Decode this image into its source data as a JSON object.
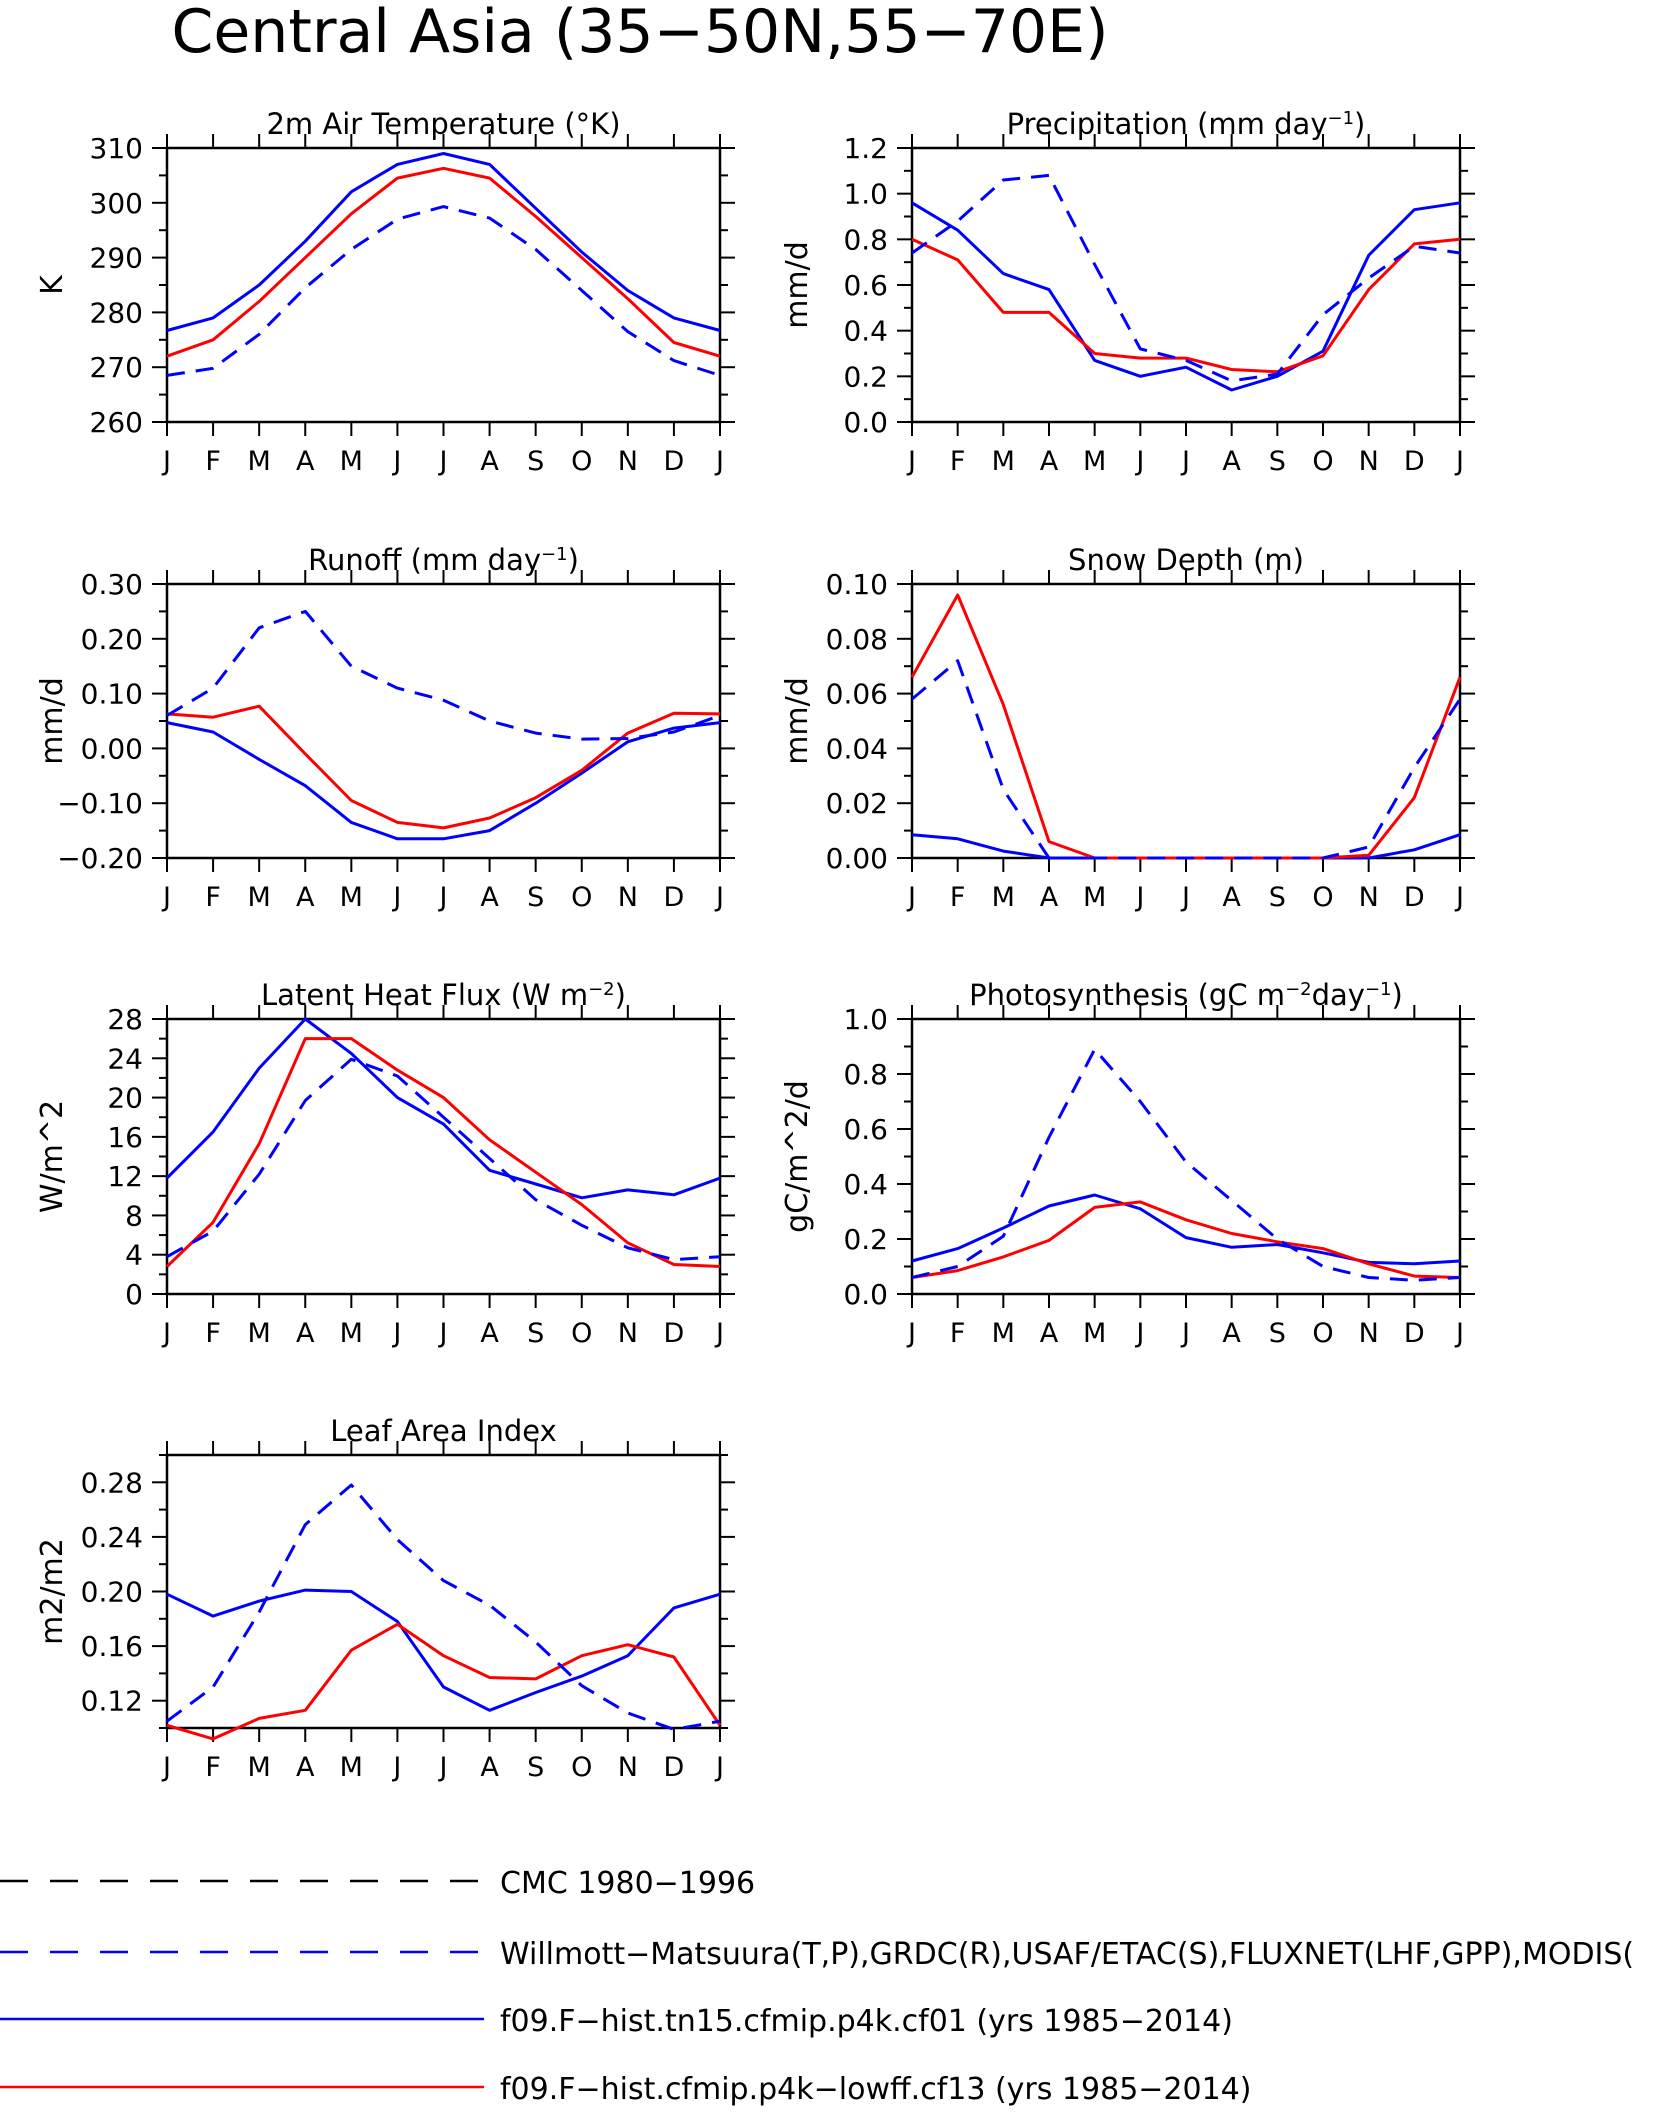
{
  "page_title": "Central Asia (35−50N,55−70E)",
  "colors": {
    "model_a": "#0000ff",
    "model_b": "#ff0000",
    "obs_cmc": "#000000",
    "obs_main": "#0000ff",
    "axis": "#000000"
  },
  "months": [
    "J",
    "F",
    "M",
    "A",
    "M",
    "J",
    "J",
    "A",
    "S",
    "O",
    "N",
    "D",
    "J"
  ],
  "legend": [
    {
      "label": "CMC 1980−1996",
      "color": "#000000",
      "style": "dashed"
    },
    {
      "label": "Willmott−Matsuura(T,P),GRDC(R),USAF/ETAC(S),FLUXNET(LHF,GPP),MODIS(",
      "color": "#0000ff",
      "style": "dashed"
    },
    {
      "label": "f09.F−hist.tn15.cfmip.p4k.cf01 (yrs 1985−2014)",
      "color": "#0000ff",
      "style": "solid"
    },
    {
      "label": "f09.F−hist.cfmip.p4k−lowff.cf13 (yrs 1985−2014)",
      "color": "#ff0000",
      "style": "solid"
    }
  ],
  "chart_data": [
    {
      "type": "line",
      "title_parts": [
        {
          "t": "2m Air Temperature (°K)"
        }
      ],
      "ylabel": "K",
      "ylim": [
        260,
        310
      ],
      "yticks": [
        260,
        270,
        280,
        290,
        300,
        310
      ],
      "ytick_labels": [
        "260",
        "270",
        "280",
        "290",
        "300",
        "310"
      ],
      "yminor": 5,
      "series": [
        {
          "color": "#0000ff",
          "style": "solid",
          "values": [
            276.7,
            279,
            285,
            293,
            302,
            307,
            309,
            307,
            299,
            291,
            284,
            279,
            276.7
          ]
        },
        {
          "color": "#ff0000",
          "style": "solid",
          "values": [
            272,
            275,
            282,
            290,
            298,
            304.5,
            306.3,
            304.5,
            297.5,
            290,
            282.5,
            274.5,
            272
          ]
        },
        {
          "color": "#0000ff",
          "style": "dashed",
          "values": [
            268.5,
            269.8,
            276,
            284.5,
            291.5,
            297,
            299.3,
            297.2,
            291.5,
            284,
            276.5,
            271.2,
            268.5
          ]
        }
      ]
    },
    {
      "type": "line",
      "title_parts": [
        {
          "t": "Precipitation (mm day"
        },
        {
          "t": "−1",
          "sup": true
        },
        {
          "t": ")"
        }
      ],
      "ylabel": "mm/d",
      "ylim": [
        0,
        1.2
      ],
      "yticks": [
        0,
        0.2,
        0.4,
        0.6,
        0.8,
        1.0,
        1.2
      ],
      "ytick_labels": [
        "0.0",
        "0.2",
        "0.4",
        "0.6",
        "0.8",
        "1.0",
        "1.2"
      ],
      "yminor": 0.1,
      "series": [
        {
          "color": "#0000ff",
          "style": "solid",
          "values": [
            0.96,
            0.84,
            0.65,
            0.58,
            0.27,
            0.2,
            0.24,
            0.14,
            0.2,
            0.31,
            0.73,
            0.93,
            0.96
          ]
        },
        {
          "color": "#ff0000",
          "style": "solid",
          "values": [
            0.8,
            0.71,
            0.48,
            0.48,
            0.3,
            0.28,
            0.28,
            0.23,
            0.22,
            0.29,
            0.58,
            0.78,
            0.8
          ]
        },
        {
          "color": "#0000ff",
          "style": "dashed",
          "values": [
            0.74,
            0.88,
            1.06,
            1.08,
            0.69,
            0.32,
            0.27,
            0.18,
            0.21,
            0.47,
            0.63,
            0.77,
            0.74
          ]
        }
      ]
    },
    {
      "type": "line",
      "title_parts": [
        {
          "t": "Runoff (mm day"
        },
        {
          "t": "−1",
          "sup": true
        },
        {
          "t": ")"
        }
      ],
      "ylabel": "mm/d",
      "ylim": [
        -0.2,
        0.3
      ],
      "yticks": [
        -0.2,
        -0.1,
        0,
        0.1,
        0.2,
        0.3
      ],
      "ytick_labels": [
        "−0.20",
        "−0.10",
        "0.00",
        "0.10",
        "0.20",
        "0.30"
      ],
      "yminor": 0.05,
      "series": [
        {
          "color": "#0000ff",
          "style": "solid",
          "values": [
            0.047,
            0.03,
            -0.02,
            -0.068,
            -0.135,
            -0.165,
            -0.165,
            -0.15,
            -0.1,
            -0.045,
            0.012,
            0.037,
            0.047
          ]
        },
        {
          "color": "#ff0000",
          "style": "solid",
          "values": [
            0.063,
            0.057,
            0.077,
            -0.01,
            -0.095,
            -0.135,
            -0.145,
            -0.127,
            -0.09,
            -0.04,
            0.028,
            0.064,
            0.063
          ]
        },
        {
          "color": "#0000ff",
          "style": "dashed",
          "values": [
            0.06,
            0.11,
            0.22,
            0.25,
            0.15,
            0.11,
            0.088,
            0.05,
            0.028,
            0.017,
            0.018,
            0.03,
            0.06
          ]
        }
      ]
    },
    {
      "type": "line",
      "title_parts": [
        {
          "t": "Snow Depth (m)"
        }
      ],
      "ylabel": "mm/d",
      "ylim": [
        0,
        0.1
      ],
      "yticks": [
        0,
        0.02,
        0.04,
        0.06,
        0.08,
        0.1
      ],
      "ytick_labels": [
        "0.00",
        "0.02",
        "0.04",
        "0.06",
        "0.08",
        "0.10"
      ],
      "yminor": 0.01,
      "series": [
        {
          "color": "#0000ff",
          "style": "solid",
          "values": [
            0.0085,
            0.007,
            0.0025,
            0,
            0,
            0,
            0,
            0,
            0,
            0,
            0,
            0.003,
            0.0085
          ]
        },
        {
          "color": "#ff0000",
          "style": "solid",
          "values": [
            0.066,
            0.096,
            0.056,
            0.006,
            0,
            0,
            0,
            0,
            0,
            0,
            0.001,
            0.022,
            0.066
          ]
        },
        {
          "color": "#0000ff",
          "style": "dashed",
          "values": [
            0.058,
            0.072,
            0.025,
            0,
            0,
            0,
            0,
            0,
            0,
            0,
            0.004,
            0.033,
            0.058
          ]
        }
      ]
    },
    {
      "type": "line",
      "title_parts": [
        {
          "t": "Latent Heat Flux (W m"
        },
        {
          "t": "−2",
          "sup": true
        },
        {
          "t": ")"
        }
      ],
      "ylabel": "W/m^2",
      "ylim": [
        0,
        28
      ],
      "yticks": [
        0,
        4,
        8,
        12,
        16,
        20,
        24,
        28
      ],
      "ytick_labels": [
        "0",
        "4",
        "8",
        "12",
        "16",
        "20",
        "24",
        "28"
      ],
      "yminor": 2,
      "series": [
        {
          "color": "#0000ff",
          "style": "solid",
          "values": [
            11.8,
            16.5,
            23,
            28,
            24.5,
            20,
            17.3,
            12.6,
            11.2,
            9.8,
            10.6,
            10.1,
            11.8
          ]
        },
        {
          "color": "#ff0000",
          "style": "solid",
          "values": [
            2.8,
            7.3,
            15.3,
            26,
            26,
            22.8,
            20,
            15.7,
            12.4,
            9.1,
            5.2,
            3,
            2.8
          ]
        },
        {
          "color": "#0000ff",
          "style": "dashed",
          "values": [
            3.8,
            6.4,
            12.2,
            19.7,
            23.9,
            22.2,
            18,
            13.8,
            9.6,
            7,
            4.7,
            3.5,
            3.8
          ]
        }
      ]
    },
    {
      "type": "line",
      "title_parts": [
        {
          "t": "Photosynthesis (gC m"
        },
        {
          "t": "−2",
          "sup": true
        },
        {
          "t": "day"
        },
        {
          "t": "−1",
          "sup": true
        },
        {
          "t": ")"
        }
      ],
      "ylabel": "gC/m^2/d",
      "ylim": [
        0,
        1.0
      ],
      "yticks": [
        0,
        0.2,
        0.4,
        0.6,
        0.8,
        1.0
      ],
      "ytick_labels": [
        "0.0",
        "0.2",
        "0.4",
        "0.6",
        "0.8",
        "1.0"
      ],
      "yminor": 0.1,
      "series": [
        {
          "color": "#0000ff",
          "style": "solid",
          "values": [
            0.12,
            0.165,
            0.24,
            0.32,
            0.36,
            0.31,
            0.205,
            0.17,
            0.18,
            0.15,
            0.115,
            0.11,
            0.12
          ]
        },
        {
          "color": "#ff0000",
          "style": "solid",
          "values": [
            0.06,
            0.085,
            0.135,
            0.195,
            0.315,
            0.335,
            0.27,
            0.22,
            0.19,
            0.165,
            0.11,
            0.065,
            0.06
          ]
        },
        {
          "color": "#0000ff",
          "style": "dashed",
          "values": [
            0.06,
            0.1,
            0.21,
            0.57,
            0.89,
            0.7,
            0.48,
            0.34,
            0.2,
            0.1,
            0.06,
            0.05,
            0.06
          ]
        }
      ]
    },
    {
      "type": "line",
      "title_parts": [
        {
          "t": "Leaf Area Index"
        }
      ],
      "ylabel": "m2/m2",
      "ylim": [
        0.1,
        0.3
      ],
      "yticks": [
        0.12,
        0.16,
        0.2,
        0.24,
        0.28
      ],
      "ytick_labels": [
        "0.12",
        "0.16",
        "0.20",
        "0.24",
        "0.28"
      ],
      "yminor": 0.02,
      "series": [
        {
          "color": "#0000ff",
          "style": "solid",
          "values": [
            0.198,
            0.182,
            0.193,
            0.201,
            0.2,
            0.178,
            0.13,
            0.113,
            0.126,
            0.138,
            0.153,
            0.188,
            0.198
          ]
        },
        {
          "color": "#ff0000",
          "style": "solid",
          "values": [
            0.102,
            0.092,
            0.107,
            0.113,
            0.157,
            0.176,
            0.153,
            0.137,
            0.136,
            0.153,
            0.161,
            0.152,
            0.102
          ]
        },
        {
          "color": "#0000ff",
          "style": "dashed",
          "values": [
            0.105,
            0.13,
            0.185,
            0.249,
            0.278,
            0.238,
            0.208,
            0.19,
            0.163,
            0.131,
            0.111,
            0.099,
            0.105
          ]
        }
      ]
    }
  ]
}
